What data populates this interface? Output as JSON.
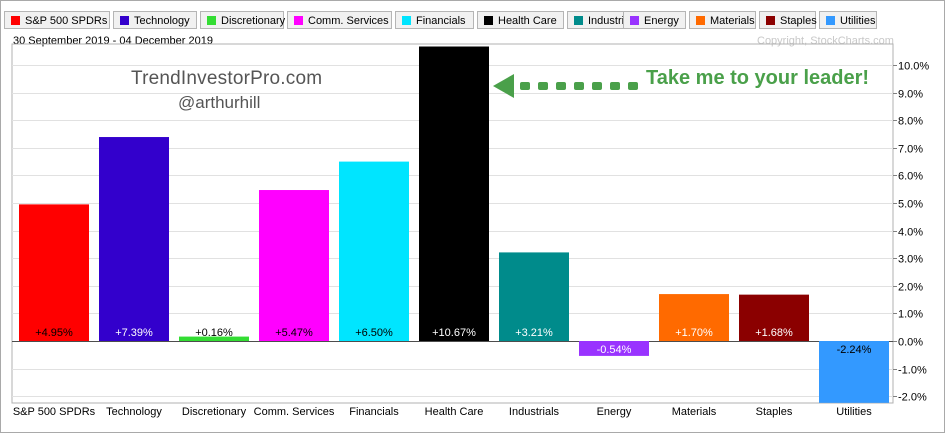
{
  "legend": [
    {
      "label": "S&P 500 SPDRs",
      "color": "#ff0000"
    },
    {
      "label": "Technology",
      "color": "#3300cc"
    },
    {
      "label": "Discretionary",
      "color": "#33dd33"
    },
    {
      "label": "Comm. Services",
      "color": "#ff00ff"
    },
    {
      "label": "Financials",
      "color": "#00e5ff"
    },
    {
      "label": "Health Care",
      "color": "#000000"
    },
    {
      "label": "Industrials",
      "color": "#008b8b"
    },
    {
      "label": "Energy",
      "color": "#9933ff"
    },
    {
      "label": "Materials",
      "color": "#ff6a00"
    },
    {
      "label": "Staples",
      "color": "#8b0000"
    },
    {
      "label": "Utilities",
      "color": "#3399ff"
    }
  ],
  "date_range": "30 September 2019 - 04 December 2019",
  "copyright": "Copyright, StockCharts.com",
  "watermark": {
    "line1": "TrendInvestorPro.com",
    "line2": "@arthurhill"
  },
  "annotation": {
    "text": "Take me to your leader!",
    "color": "#4aa04a"
  },
  "chart_data": {
    "type": "bar",
    "categories": [
      "S&P 500 SPDRs",
      "Technology",
      "Discretionary",
      "Comm. Services",
      "Financials",
      "Health Care",
      "Industrials",
      "Energy",
      "Materials",
      "Staples",
      "Utilities"
    ],
    "values": [
      4.95,
      7.39,
      0.16,
      5.47,
      6.5,
      10.67,
      3.21,
      -0.54,
      1.7,
      1.68,
      -2.24
    ],
    "value_labels": [
      "+4.95%",
      "+7.39%",
      "+0.16%",
      "+5.47%",
      "+6.50%",
      "+10.67%",
      "+3.21%",
      "-0.54%",
      "+1.70%",
      "+1.68%",
      "-2.24%"
    ],
    "colors": [
      "#ff0000",
      "#3300cc",
      "#33dd33",
      "#ff00ff",
      "#00e5ff",
      "#000000",
      "#008b8b",
      "#9933ff",
      "#ff6a00",
      "#8b0000",
      "#3399ff"
    ],
    "label_colors": [
      "#000000",
      "#ffffff",
      "#000000",
      "#000000",
      "#000000",
      "#ffffff",
      "#ffffff",
      "#ffffff",
      "#ffffff",
      "#ffffff",
      "#000000"
    ],
    "y_ticks": [
      "10.0%",
      "9.0%",
      "8.0%",
      "7.0%",
      "6.0%",
      "5.0%",
      "4.0%",
      "3.0%",
      "2.0%",
      "1.0%",
      "0.0%",
      "-1.0%",
      "-2.0%"
    ],
    "y_tick_values": [
      10,
      9,
      8,
      7,
      6,
      5,
      4,
      3,
      2,
      1,
      0,
      -1,
      -2
    ],
    "ylim": [
      -2.25,
      10.8
    ],
    "y_axis_position": "right",
    "grid": true
  }
}
